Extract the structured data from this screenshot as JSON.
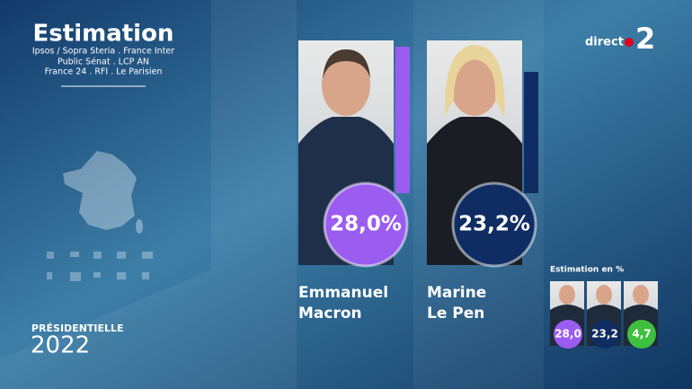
{
  "header": {
    "title": "Estimation",
    "sources": [
      "Ipsos / Sopra Steria . France Inter",
      "Public Sénat . LCP AN",
      "France 24 . RFI . Le Parisien"
    ]
  },
  "logo": {
    "text": "direct",
    "channel": "2"
  },
  "brand": {
    "label": "PRÉSIDENTIELLE",
    "year": "2022"
  },
  "candidates": [
    {
      "first": "Emmanuel",
      "last": "Macron",
      "value": 28.0,
      "value_label": "28,0%",
      "color": "#9b5cf0"
    },
    {
      "first": "Marine",
      "last": "Le Pen",
      "value": 23.2,
      "value_label": "23,2%",
      "color": "#0f2d63"
    }
  ],
  "inset": {
    "title": "Estimation en %",
    "values": [
      28.0,
      23.2,
      4.7
    ],
    "value_labels": [
      "28,0",
      "23,2",
      "4,7"
    ],
    "colors": [
      "#9b5cf0",
      "#0f2d63",
      "#3fbf3f"
    ]
  }
}
